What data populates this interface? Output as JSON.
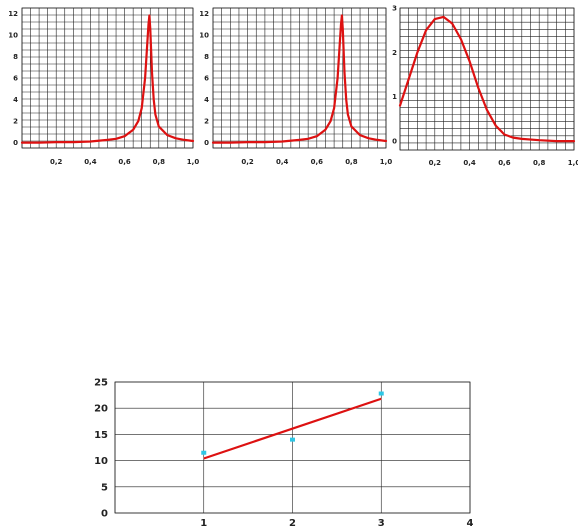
{
  "colors": {
    "curve": "#dd1111",
    "points": "#2ec7e6",
    "grid": "#222222"
  },
  "chart_data": [
    {
      "type": "line",
      "title": "",
      "xlabel": "",
      "ylabel": "",
      "xlim": [
        0,
        1.0
      ],
      "ylim": [
        -0.5,
        12.5
      ],
      "xticks": [
        0.2,
        0.4,
        0.6,
        0.8,
        1.0
      ],
      "xtick_labels": [
        "0,2",
        "0,4",
        "0,6",
        "0,8",
        "1,0"
      ],
      "yticks": [
        0,
        2,
        4,
        6,
        8,
        10,
        12
      ],
      "ytick_labels": [
        "0",
        "2",
        "4",
        "6",
        "8",
        "10",
        "12"
      ],
      "grid": true,
      "series": [
        {
          "x": [
            0,
            0.1,
            0.2,
            0.3,
            0.4,
            0.5,
            0.55,
            0.6,
            0.65,
            0.68,
            0.7,
            0.72,
            0.73,
            0.74,
            0.745,
            0.75,
            0.76,
            0.77,
            0.78,
            0.8,
            0.85,
            0.9,
            0.95,
            1.0
          ],
          "y": [
            0.0,
            0.0,
            0.05,
            0.05,
            0.1,
            0.25,
            0.35,
            0.6,
            1.2,
            2.0,
            3.2,
            6.0,
            8.5,
            11.0,
            11.8,
            10.5,
            6.5,
            4.0,
            2.6,
            1.5,
            0.7,
            0.4,
            0.25,
            0.15
          ]
        }
      ]
    },
    {
      "type": "line",
      "title": "",
      "xlabel": "",
      "ylabel": "",
      "xlim": [
        0,
        1.0
      ],
      "ylim": [
        -0.5,
        12.5
      ],
      "xticks": [
        0.2,
        0.4,
        0.6,
        0.8,
        1.0
      ],
      "xtick_labels": [
        "0,2",
        "0,4",
        "0,6",
        "0,8",
        "1,0"
      ],
      "yticks": [
        0,
        2,
        4,
        6,
        8,
        10,
        12
      ],
      "ytick_labels": [
        "0",
        "2",
        "4",
        "6",
        "8",
        "10",
        "12"
      ],
      "grid": true,
      "series": [
        {
          "x": [
            0,
            0.1,
            0.2,
            0.3,
            0.4,
            0.5,
            0.55,
            0.6,
            0.65,
            0.68,
            0.7,
            0.72,
            0.73,
            0.74,
            0.745,
            0.75,
            0.76,
            0.77,
            0.78,
            0.8,
            0.85,
            0.9,
            0.95,
            1.0
          ],
          "y": [
            0.0,
            0.0,
            0.05,
            0.05,
            0.1,
            0.25,
            0.35,
            0.6,
            1.2,
            2.0,
            3.2,
            6.0,
            8.5,
            11.0,
            11.8,
            10.5,
            6.5,
            4.0,
            2.6,
            1.5,
            0.7,
            0.4,
            0.25,
            0.15
          ]
        }
      ]
    },
    {
      "type": "line",
      "title": "",
      "xlabel": "",
      "ylabel": "",
      "xlim": [
        0,
        1.0
      ],
      "ylim": [
        -0.2,
        3.0
      ],
      "xticks": [
        0.2,
        0.4,
        0.6,
        0.8,
        1.0
      ],
      "xtick_labels": [
        "0,2",
        "0,4",
        "0,6",
        "0,8",
        "1,0"
      ],
      "yticks": [
        0,
        1,
        2,
        3
      ],
      "ytick_labels": [
        "0",
        "1",
        "2",
        "3"
      ],
      "grid": true,
      "series": [
        {
          "x": [
            0,
            0.05,
            0.1,
            0.15,
            0.2,
            0.25,
            0.3,
            0.35,
            0.4,
            0.45,
            0.5,
            0.55,
            0.6,
            0.65,
            0.7,
            0.8,
            0.9,
            1.0
          ],
          "y": [
            0.8,
            1.4,
            2.0,
            2.5,
            2.75,
            2.8,
            2.65,
            2.3,
            1.8,
            1.2,
            0.7,
            0.35,
            0.15,
            0.08,
            0.05,
            0.02,
            0.0,
            0.0
          ]
        }
      ]
    },
    {
      "type": "scatter",
      "title": "",
      "xlabel": "",
      "ylabel": "",
      "xlim": [
        0,
        4
      ],
      "ylim": [
        0,
        25
      ],
      "xticks": [
        1,
        2,
        3,
        4
      ],
      "xtick_labels": [
        "1",
        "2",
        "3",
        "4"
      ],
      "yticks": [
        0,
        5,
        10,
        15,
        20,
        25
      ],
      "ytick_labels": [
        "0",
        "5",
        "10",
        "15",
        "20",
        "25"
      ],
      "grid": true,
      "points": {
        "x": [
          1,
          2,
          3
        ],
        "y": [
          11.5,
          14,
          22.8
        ]
      },
      "fit_line": {
        "x": [
          1,
          3
        ],
        "y": [
          10.4,
          21.8
        ]
      }
    }
  ]
}
